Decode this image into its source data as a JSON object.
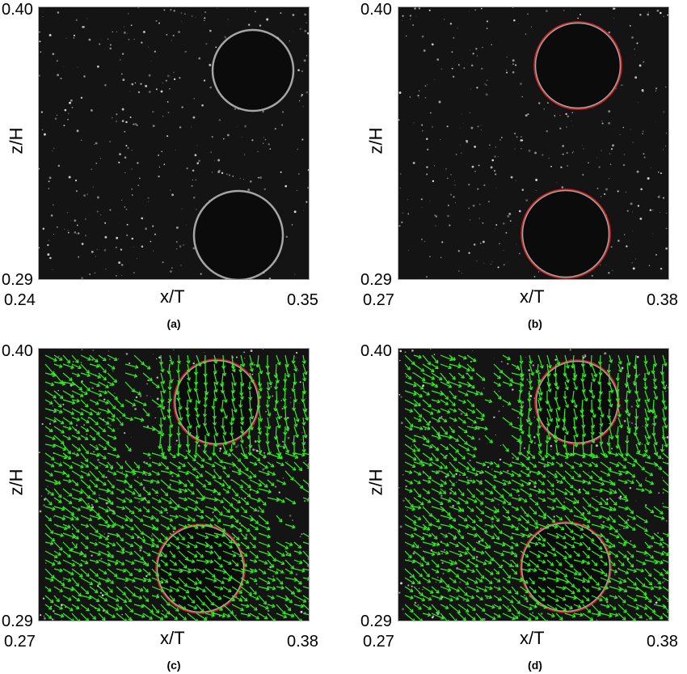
{
  "panels": [
    {
      "id": "a",
      "caption": "(a)",
      "x_ticks": [
        "0.24",
        "0.35"
      ],
      "y_ticks": [
        "0.40",
        "0.29"
      ],
      "xlabel": "x/T",
      "ylabel": "z/H",
      "circle_color": "#d8d8d8",
      "red_outline": false,
      "vectors": false
    },
    {
      "id": "b",
      "caption": "(b)",
      "x_ticks": [
        "0.27",
        "0.38"
      ],
      "y_ticks": [
        "0.40",
        "0.29"
      ],
      "xlabel": "x/T",
      "ylabel": "z/H",
      "circle_color": "#d8d8d8",
      "red_outline": true,
      "vectors": false
    },
    {
      "id": "c",
      "caption": "(c)",
      "x_ticks": [
        "0.27",
        "0.38"
      ],
      "y_ticks": [
        "0.40",
        "0.29"
      ],
      "xlabel": "x/T",
      "ylabel": "z/H",
      "circle_color": "#d8d8d8",
      "red_outline": true,
      "vectors": true
    },
    {
      "id": "d",
      "caption": "(d)",
      "x_ticks": [
        "0.27",
        "0.38"
      ],
      "y_ticks": [
        "0.40",
        "0.29"
      ],
      "xlabel": "x/T",
      "ylabel": "z/H",
      "circle_color": "#d8d8d8",
      "red_outline": true,
      "vectors": true
    }
  ],
  "colors": {
    "background": "#141414",
    "bubble_outline": "#d8d8d8",
    "fit_circle": "#d02020",
    "vector": "#33ee22",
    "particle": "#ffffff"
  }
}
